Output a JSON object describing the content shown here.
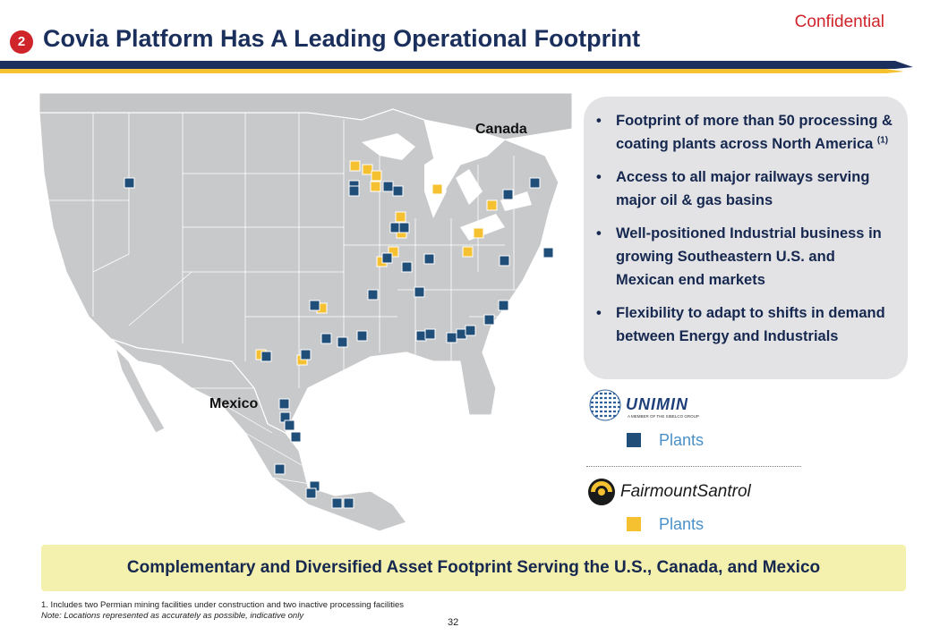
{
  "header": {
    "confidential": "Confidential",
    "section_number": "2",
    "title": "Covia Platform Has A Leading Operational Footprint"
  },
  "colors": {
    "navy": "#1a2f5c",
    "unimin_plant": "#1f4e79",
    "fairmount_plant": "#f5c131",
    "accent_red": "#d0242b",
    "banner_bg": "#f4f0ad"
  },
  "map": {
    "labels": {
      "canada": "Canada",
      "mexico": "Mexico"
    }
  },
  "callout": {
    "bullets": [
      {
        "text": "Footprint of more than 50 processing & coating plants across North America",
        "sup": "(1)"
      },
      {
        "text": "Access to all major railways serving major oil & gas basins",
        "sup": ""
      },
      {
        "text": "Well-positioned Industrial business in growing Southeastern U.S. and Mexican end markets",
        "sup": ""
      },
      {
        "text": "Flexibility to adapt to shifts in demand between Energy and Industrials",
        "sup": ""
      }
    ]
  },
  "legend": {
    "unimin": {
      "logo_text": "UNIMIN",
      "logo_sub": "A MEMBER OF THE SIBELCO GROUP",
      "label": "Plants"
    },
    "fairmount": {
      "logo_text": "FairmountSantrol",
      "label": "Plants"
    }
  },
  "banner": {
    "text": "Complementary and Diversified Asset Footprint Serving the U.S., Canada, and Mexico"
  },
  "footnotes": {
    "note1": "1.  Includes two Permian mining facilities under construction and two inactive processing facilities",
    "note2": "Note: Locations represented as accurately as possible, indicative only"
  },
  "page_number": "32"
}
